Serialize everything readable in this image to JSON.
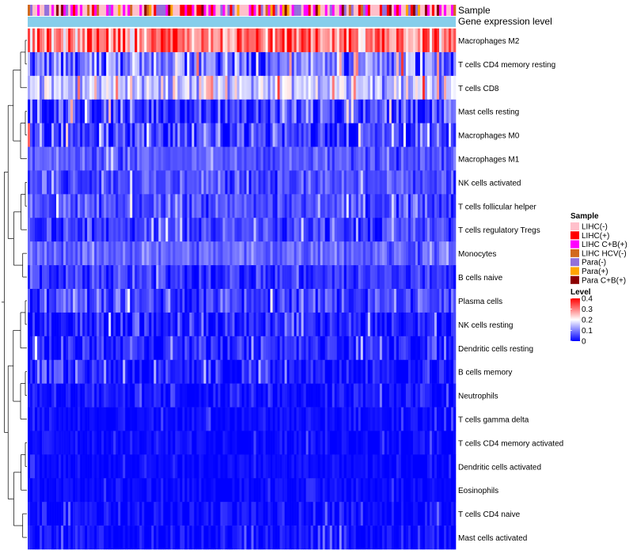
{
  "chart_data": {
    "type": "heatmap",
    "annotation_rows": [
      {
        "label": "Sample"
      },
      {
        "label": "Gene expression level"
      }
    ],
    "rows": [
      {
        "label": "Macrophages M2",
        "mean": 0.3,
        "spread": 0.09
      },
      {
        "label": "T cells CD4 memory resting",
        "mean": 0.09,
        "spread": 0.08
      },
      {
        "label": "T cells CD8",
        "mean": 0.16,
        "spread": 0.07
      },
      {
        "label": "Mast cells resting",
        "mean": 0.05,
        "spread": 0.07
      },
      {
        "label": "Macrophages M0",
        "mean": 0.05,
        "spread": 0.07
      },
      {
        "label": "Macrophages M1",
        "mean": 0.07,
        "spread": 0.03
      },
      {
        "label": "NK cells activated",
        "mean": 0.06,
        "spread": 0.04
      },
      {
        "label": "T cells follicular helper",
        "mean": 0.06,
        "spread": 0.04
      },
      {
        "label": "T cells regulatory  Tregs",
        "mean": 0.05,
        "spread": 0.04
      },
      {
        "label": "Monocytes",
        "mean": 0.08,
        "spread": 0.03
      },
      {
        "label": "B cells naive",
        "mean": 0.04,
        "spread": 0.04
      },
      {
        "label": "Plasma cells",
        "mean": 0.05,
        "spread": 0.05
      },
      {
        "label": "NK cells resting",
        "mean": 0.02,
        "spread": 0.04
      },
      {
        "label": "Dendritic cells resting",
        "mean": 0.03,
        "spread": 0.04
      },
      {
        "label": "B cells memory",
        "mean": 0.02,
        "spread": 0.04
      },
      {
        "label": "Neutrophils",
        "mean": 0.015,
        "spread": 0.03
      },
      {
        "label": "T cells gamma delta",
        "mean": 0.01,
        "spread": 0.02
      },
      {
        "label": "T cells CD4 memory activated",
        "mean": 0.008,
        "spread": 0.02
      },
      {
        "label": "Dendritic cells activated",
        "mean": 0.006,
        "spread": 0.015
      },
      {
        "label": "Eosinophils",
        "mean": 0.005,
        "spread": 0.015
      },
      {
        "label": "T cells CD4 naive",
        "mean": 0.008,
        "spread": 0.03
      },
      {
        "label": "Mast cells activated",
        "mean": 0.01,
        "spread": 0.03
      }
    ],
    "n_samples": 180,
    "legend_sample": {
      "title": "Sample",
      "items": [
        {
          "label": "LIHC(-)",
          "color": "#FFC0CB"
        },
        {
          "label": "LIHC(+)",
          "color": "#FF0000"
        },
        {
          "label": "LIHC C+B(+)",
          "color": "#FF00FF"
        },
        {
          "label": "LIHC HCV(-)",
          "color": "#D2691E"
        },
        {
          "label": "Para(-)",
          "color": "#9370DB"
        },
        {
          "label": "Para(+)",
          "color": "#FFA500"
        },
        {
          "label": "Para C+B(+)",
          "color": "#8B0000"
        }
      ]
    },
    "legend_level": {
      "title": "Level",
      "range": [
        0,
        0.4
      ],
      "ticks": [
        "0.4",
        "0.3",
        "0.2",
        "0.1",
        "0"
      ],
      "tick_values": [
        0.4,
        0.3,
        0.2,
        0.1,
        0
      ]
    },
    "gene_expression_color": "#87CEEB",
    "color_scale": [
      "#0000FF",
      "#FFFFFF",
      "#FF0000"
    ]
  }
}
